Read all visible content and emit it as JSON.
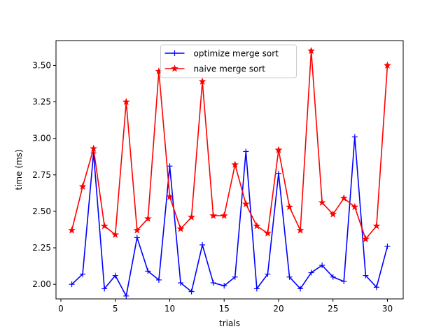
{
  "chart_data": {
    "type": "line",
    "title": "",
    "xlabel": "trials",
    "ylabel": "time (ms)",
    "xlim": [
      -0.45,
      31.45
    ],
    "ylim": [
      1.9,
      3.67
    ],
    "x_ticks": [
      0,
      5,
      10,
      15,
      20,
      25,
      30
    ],
    "y_ticks": [
      2.0,
      2.25,
      2.5,
      2.75,
      3.0,
      3.25,
      3.5
    ],
    "x_tick_labels": [
      "0",
      "5",
      "10",
      "15",
      "20",
      "25",
      "30"
    ],
    "y_tick_labels": [
      "2.00",
      "2.25",
      "2.50",
      "2.75",
      "3.00",
      "3.25",
      "3.50"
    ],
    "legend_position": "top-center",
    "grid": false,
    "x": [
      1,
      2,
      3,
      4,
      5,
      6,
      7,
      8,
      9,
      10,
      11,
      12,
      13,
      14,
      15,
      16,
      17,
      18,
      19,
      20,
      21,
      22,
      23,
      24,
      25,
      26,
      27,
      28,
      29,
      30
    ],
    "series": [
      {
        "name": "optimize merge sort",
        "color": "#0000ff",
        "marker": "plus",
        "values": [
          2.0,
          2.07,
          2.9,
          1.97,
          2.06,
          1.92,
          2.32,
          2.09,
          2.03,
          2.81,
          2.01,
          1.95,
          2.27,
          2.01,
          1.99,
          2.05,
          2.91,
          1.97,
          2.07,
          2.76,
          2.05,
          1.97,
          2.08,
          2.13,
          2.05,
          2.02,
          3.01,
          2.06,
          1.98,
          2.26
        ]
      },
      {
        "name": "naive merge sort",
        "color": "#ff0000",
        "marker": "star",
        "values": [
          2.37,
          2.67,
          2.93,
          2.4,
          2.34,
          3.25,
          2.37,
          2.45,
          3.46,
          2.6,
          2.38,
          2.46,
          3.39,
          2.47,
          2.47,
          2.82,
          2.55,
          2.4,
          2.35,
          2.92,
          2.53,
          2.37,
          3.6,
          2.56,
          2.48,
          2.59,
          2.53,
          2.31,
          2.4,
          3.5
        ]
      }
    ]
  }
}
